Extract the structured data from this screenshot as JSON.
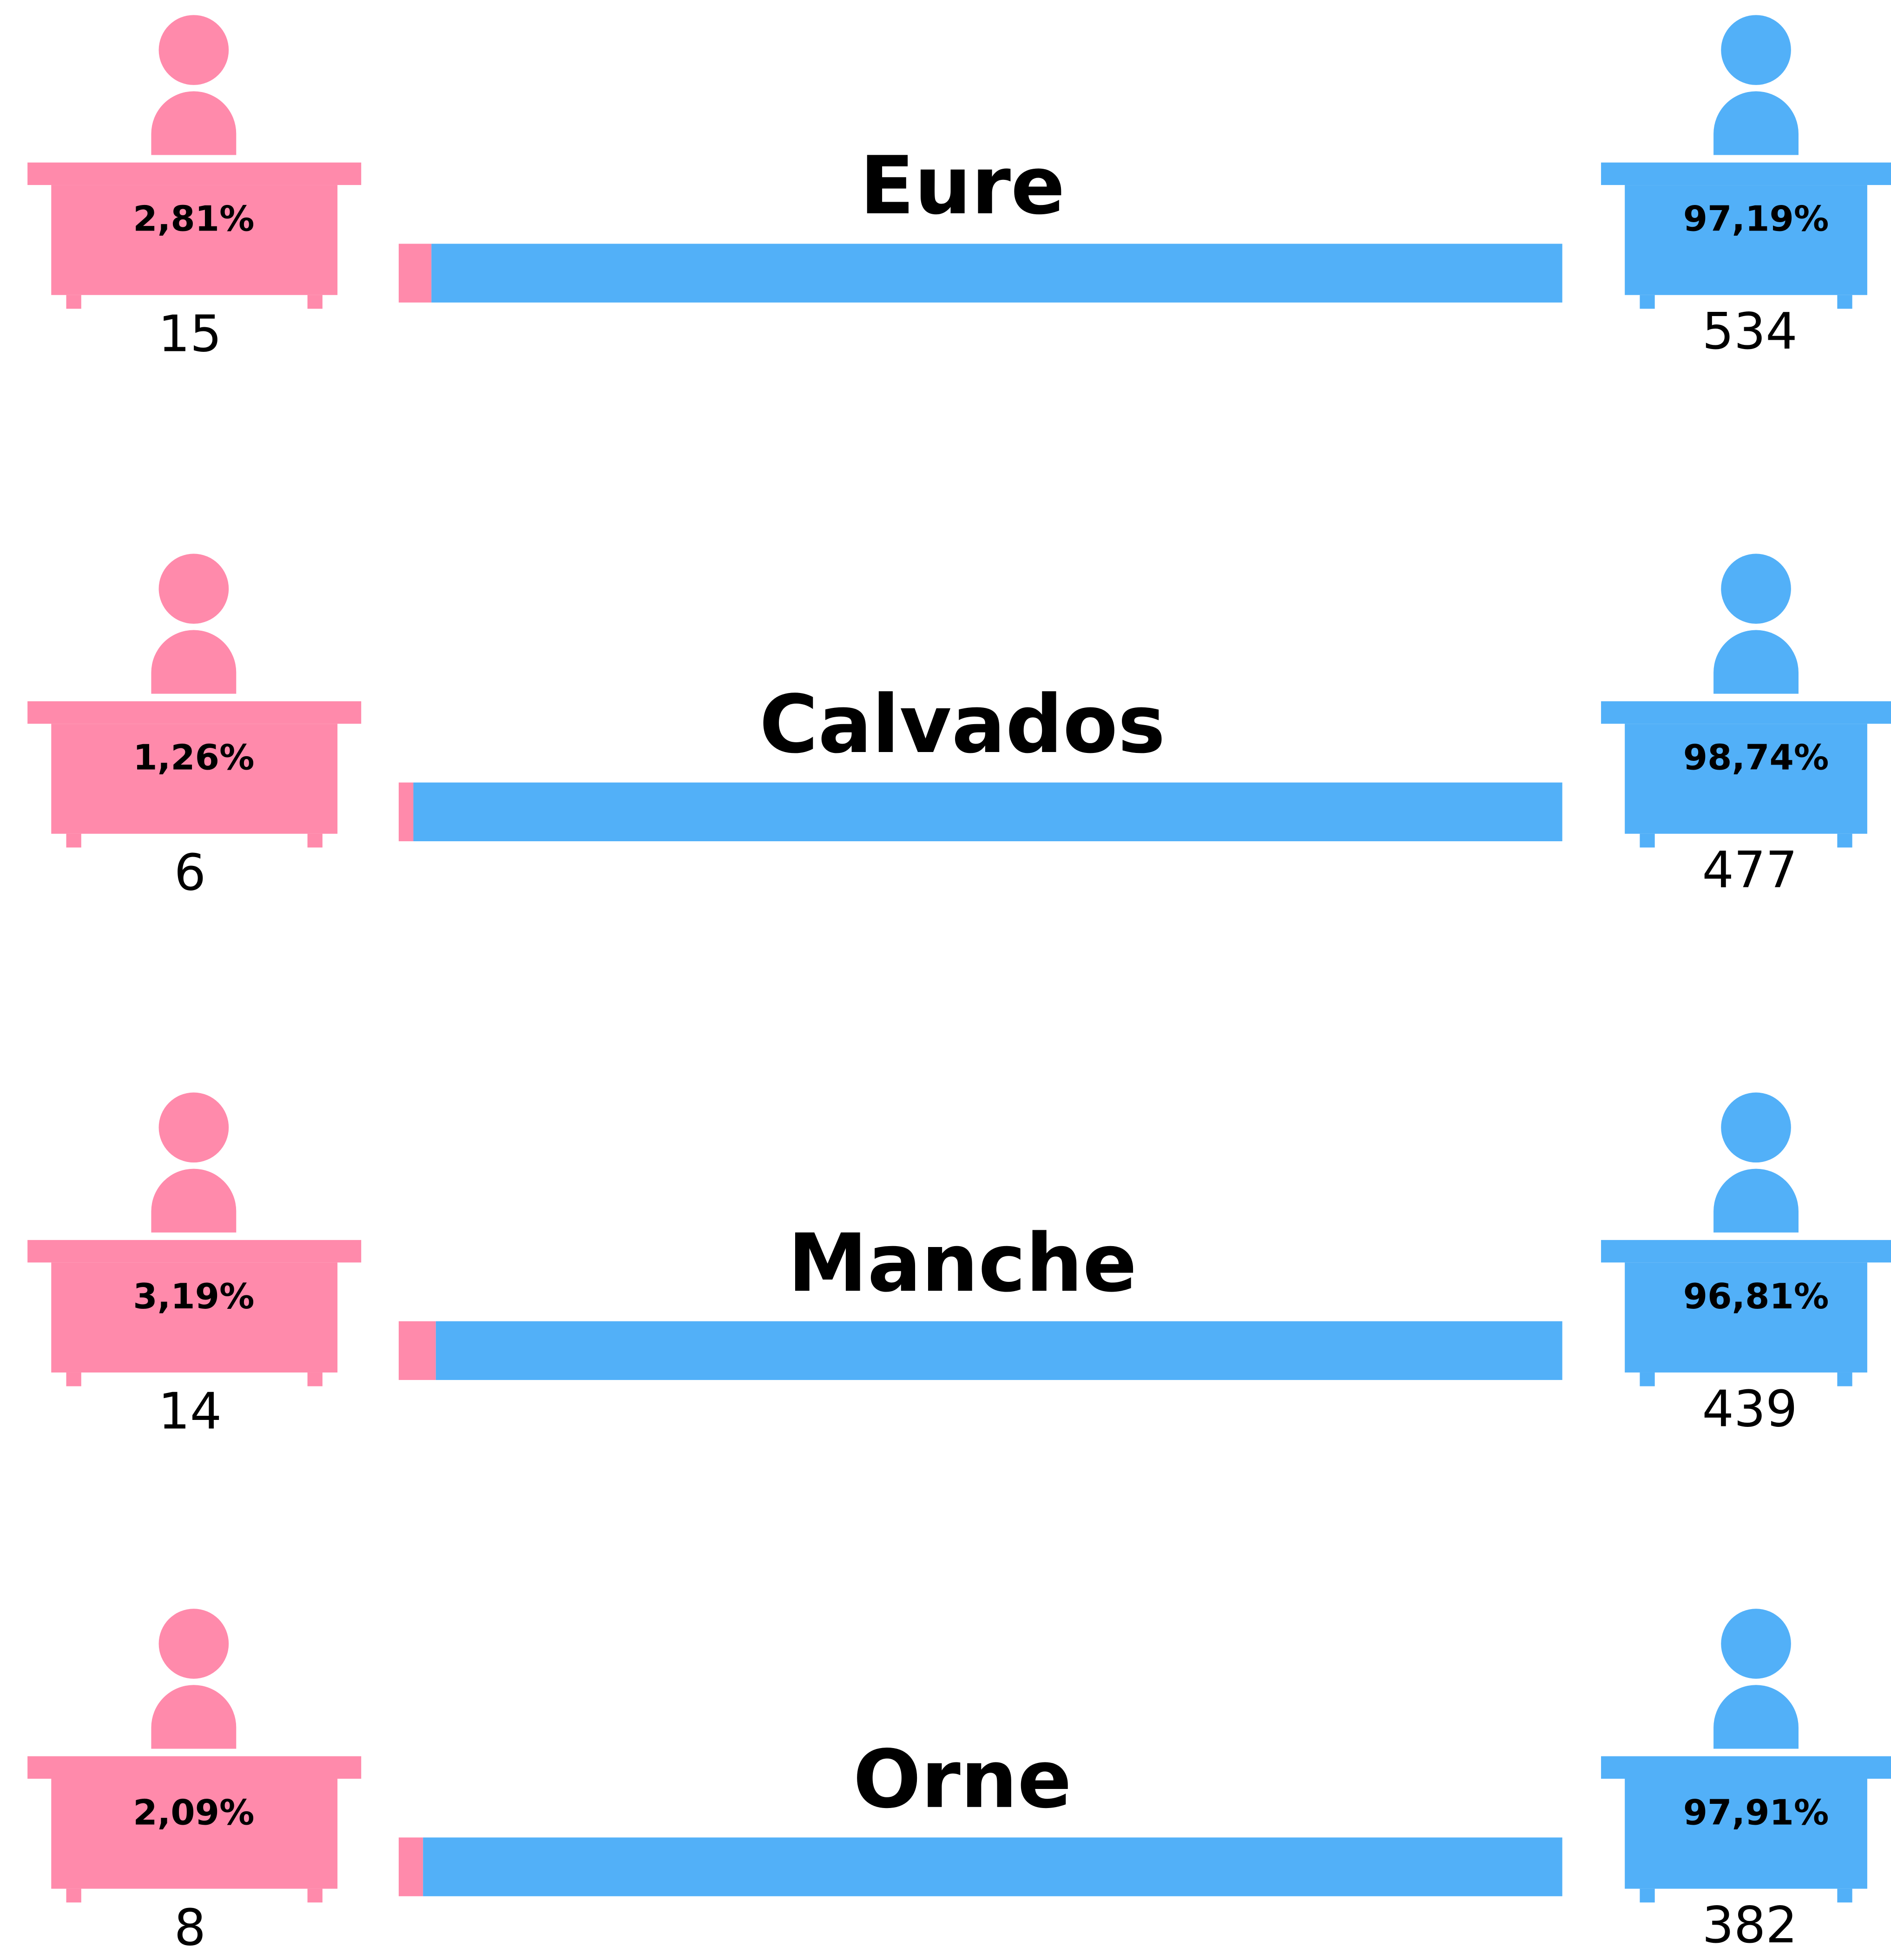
{
  "chart_data": {
    "type": "bar",
    "categories": [
      "Eure",
      "Calvados",
      "Manche",
      "Orne"
    ],
    "xlim": [
      0,
      100
    ],
    "series": [
      {
        "color": "#ff8aab",
        "values": [
          2.81,
          1.26,
          3.19,
          2.09
        ],
        "value_labels": [
          "2,81%",
          "1,26%",
          "3,19%",
          "2,09%"
        ],
        "counts": [
          15,
          6,
          14,
          8
        ]
      },
      {
        "color": "#52b0f8",
        "values": [
          97.19,
          98.74,
          96.81,
          97.91
        ],
        "value_labels": [
          "97,19%",
          "98,74%",
          "96,81%",
          "97,91%"
        ],
        "counts": [
          534,
          477,
          439,
          382
        ]
      }
    ]
  }
}
